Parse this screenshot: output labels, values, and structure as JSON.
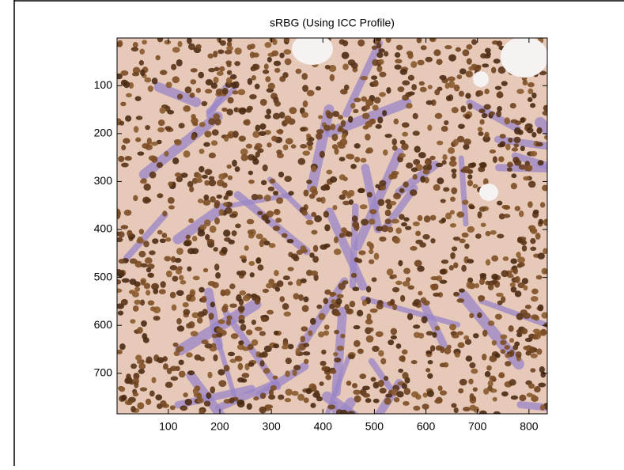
{
  "chart_data": {
    "type": "image",
    "title": "sRBG (Using ICC Profile)",
    "xlim": [
      0.5,
      835.5
    ],
    "ylim": [
      0.5,
      784.5
    ],
    "y_reversed": true,
    "xticks": [
      100,
      200,
      300,
      400,
      500,
      600,
      700,
      800
    ],
    "yticks": [
      100,
      200,
      300,
      400,
      500,
      600,
      700
    ]
  }
}
